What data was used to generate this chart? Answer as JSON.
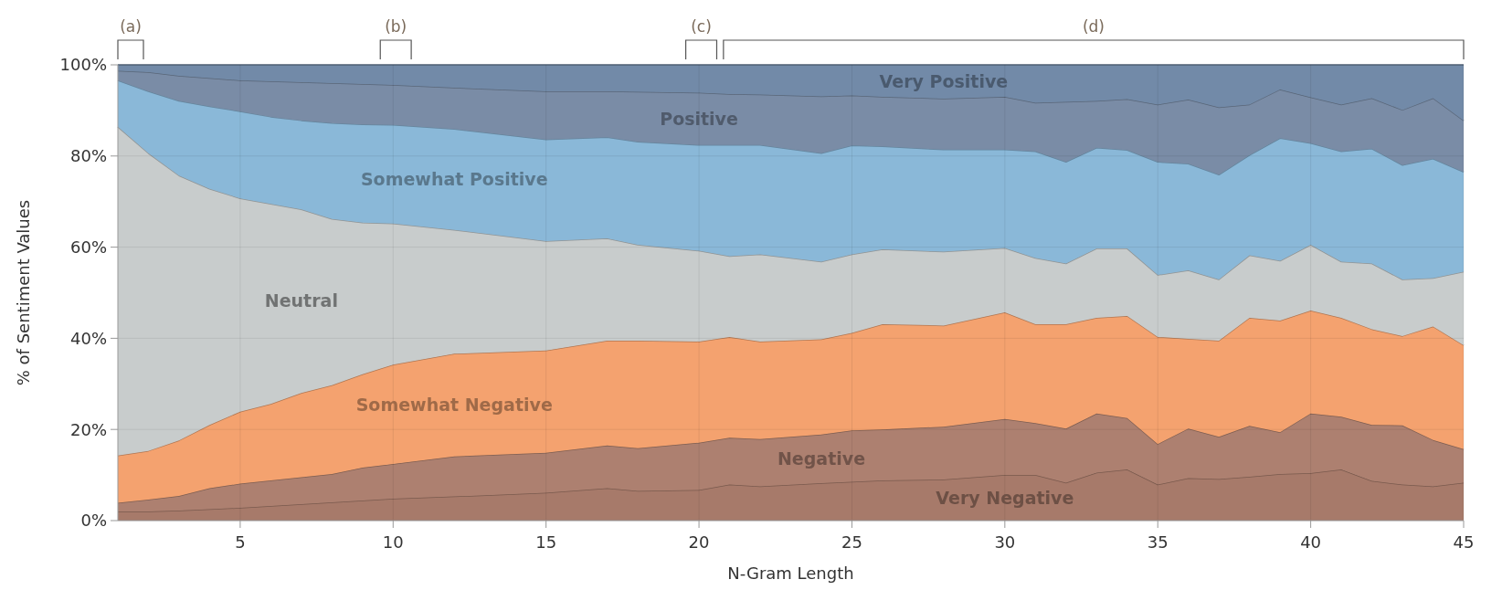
{
  "chart_data": {
    "type": "area",
    "stacked": true,
    "xlabel": "N-Gram Length",
    "ylabel": "% of Sentiment Values",
    "x": [
      1,
      2,
      3,
      4,
      5,
      6,
      7,
      8,
      9,
      10,
      12,
      15,
      17,
      18,
      20,
      21,
      22,
      24,
      25,
      26,
      28,
      30,
      31,
      32,
      33,
      34,
      35,
      36,
      37,
      38,
      39,
      40,
      41,
      42,
      43,
      44,
      45
    ],
    "xlim": [
      1,
      45
    ],
    "xticks": [
      5,
      10,
      15,
      20,
      25,
      30,
      35,
      40,
      45
    ],
    "ylim": [
      0,
      100
    ],
    "yticks": [
      {
        "value": 0,
        "label": "0%"
      },
      {
        "value": 20,
        "label": "20%"
      },
      {
        "value": 40,
        "label": "40%"
      },
      {
        "value": 60,
        "label": "60%"
      },
      {
        "value": 80,
        "label": "80%"
      },
      {
        "value": 100,
        "label": "100%"
      }
    ],
    "grid": true,
    "series": [
      {
        "name": "Very Negative",
        "color": "#a77a6a",
        "values": [
          2.0,
          2.0,
          2.2,
          2.5,
          2.8,
          3.2,
          3.6,
          4.0,
          4.4,
          4.8,
          5.3,
          6.1,
          7.1,
          6.5,
          6.7,
          7.9,
          7.5,
          8.2,
          8.5,
          8.8,
          9.0,
          10.0,
          10.0,
          8.3,
          10.5,
          11.2,
          7.9,
          9.3,
          9.1,
          9.6,
          10.2,
          10.4,
          11.2,
          8.7,
          7.9,
          7.5,
          8.3
        ]
      },
      {
        "name": "Negative",
        "color": "#ad8070",
        "values": [
          1.9,
          2.6,
          3.2,
          4.6,
          5.3,
          5.6,
          5.9,
          6.2,
          7.2,
          7.6,
          8.8,
          8.8,
          9.4,
          9.4,
          10.4,
          10.3,
          10.4,
          10.7,
          11.3,
          11.2,
          11.6,
          12.3,
          11.4,
          11.9,
          13.0,
          11.3,
          8.9,
          10.9,
          9.3,
          11.2,
          9.2,
          13.1,
          11.6,
          12.3,
          13.0,
          10.2,
          7.4
        ]
      },
      {
        "name": "Somewhat Negative",
        "color": "#f4a26f",
        "values": [
          10.4,
          10.7,
          12.2,
          13.9,
          15.8,
          16.8,
          18.5,
          19.5,
          20.5,
          21.8,
          22.5,
          22.4,
          23.0,
          23.6,
          22.2,
          22.1,
          21.4,
          20.9,
          21.4,
          23.1,
          22.2,
          23.4,
          21.7,
          22.9,
          21.0,
          22.4,
          23.5,
          19.7,
          21.1,
          23.7,
          24.5,
          22.6,
          21.7,
          21.0,
          19.6,
          24.9,
          22.8
        ]
      },
      {
        "name": "Neutral",
        "color": "#c8cccc",
        "values": [
          72.1,
          65.3,
          58.1,
          51.8,
          46.8,
          43.9,
          40.3,
          36.5,
          33.3,
          31.0,
          27.2,
          24.0,
          22.4,
          21.0,
          19.9,
          17.7,
          19.1,
          17.0,
          17.2,
          16.4,
          16.2,
          14.1,
          14.5,
          13.3,
          15.2,
          14.8,
          13.6,
          15.0,
          13.4,
          13.7,
          13.1,
          14.4,
          12.3,
          14.4,
          12.4,
          10.6,
          16.1
        ]
      },
      {
        "name": "Somewhat Positive",
        "color": "#8ab8d8",
        "values": [
          10.2,
          13.6,
          16.4,
          18.1,
          19.1,
          19.1,
          19.5,
          21.0,
          21.5,
          21.6,
          22.1,
          22.3,
          22.2,
          22.6,
          23.2,
          24.4,
          24.0,
          23.8,
          23.9,
          22.6,
          22.4,
          21.6,
          23.4,
          22.3,
          22.1,
          21.6,
          24.8,
          23.4,
          23.0,
          22.0,
          26.9,
          22.3,
          24.2,
          25.2,
          25.1,
          26.2,
          21.9
        ]
      },
      {
        "name": "Positive",
        "color": "#7a8ca6",
        "values": [
          2.1,
          4.2,
          5.5,
          6.2,
          6.8,
          7.8,
          8.4,
          8.8,
          8.9,
          8.8,
          9.1,
          10.6,
          10.1,
          11.0,
          11.5,
          11.2,
          11.1,
          12.5,
          11.0,
          10.9,
          11.2,
          11.6,
          10.7,
          13.2,
          10.3,
          11.2,
          12.6,
          14.1,
          14.8,
          11.1,
          10.7,
          10.1,
          10.3,
          11.1,
          12.1,
          13.3,
          11.3
        ]
      },
      {
        "name": "Very Positive",
        "color": "#728aa8",
        "values": [
          1.3,
          1.6,
          2.4,
          2.9,
          3.4,
          3.6,
          3.8,
          4.0,
          4.2,
          4.4,
          5.0,
          5.8,
          5.8,
          5.9,
          6.1,
          6.4,
          6.5,
          6.9,
          6.7,
          7.0,
          7.4,
          7.0,
          8.3,
          8.1,
          7.9,
          7.5,
          8.7,
          7.6,
          9.3,
          8.7,
          5.4,
          7.1,
          8.7,
          7.3,
          9.9,
          7.3,
          12.2
        ]
      }
    ],
    "annotations": [
      "(a)",
      "(b)",
      "(c)",
      "(d)"
    ]
  }
}
